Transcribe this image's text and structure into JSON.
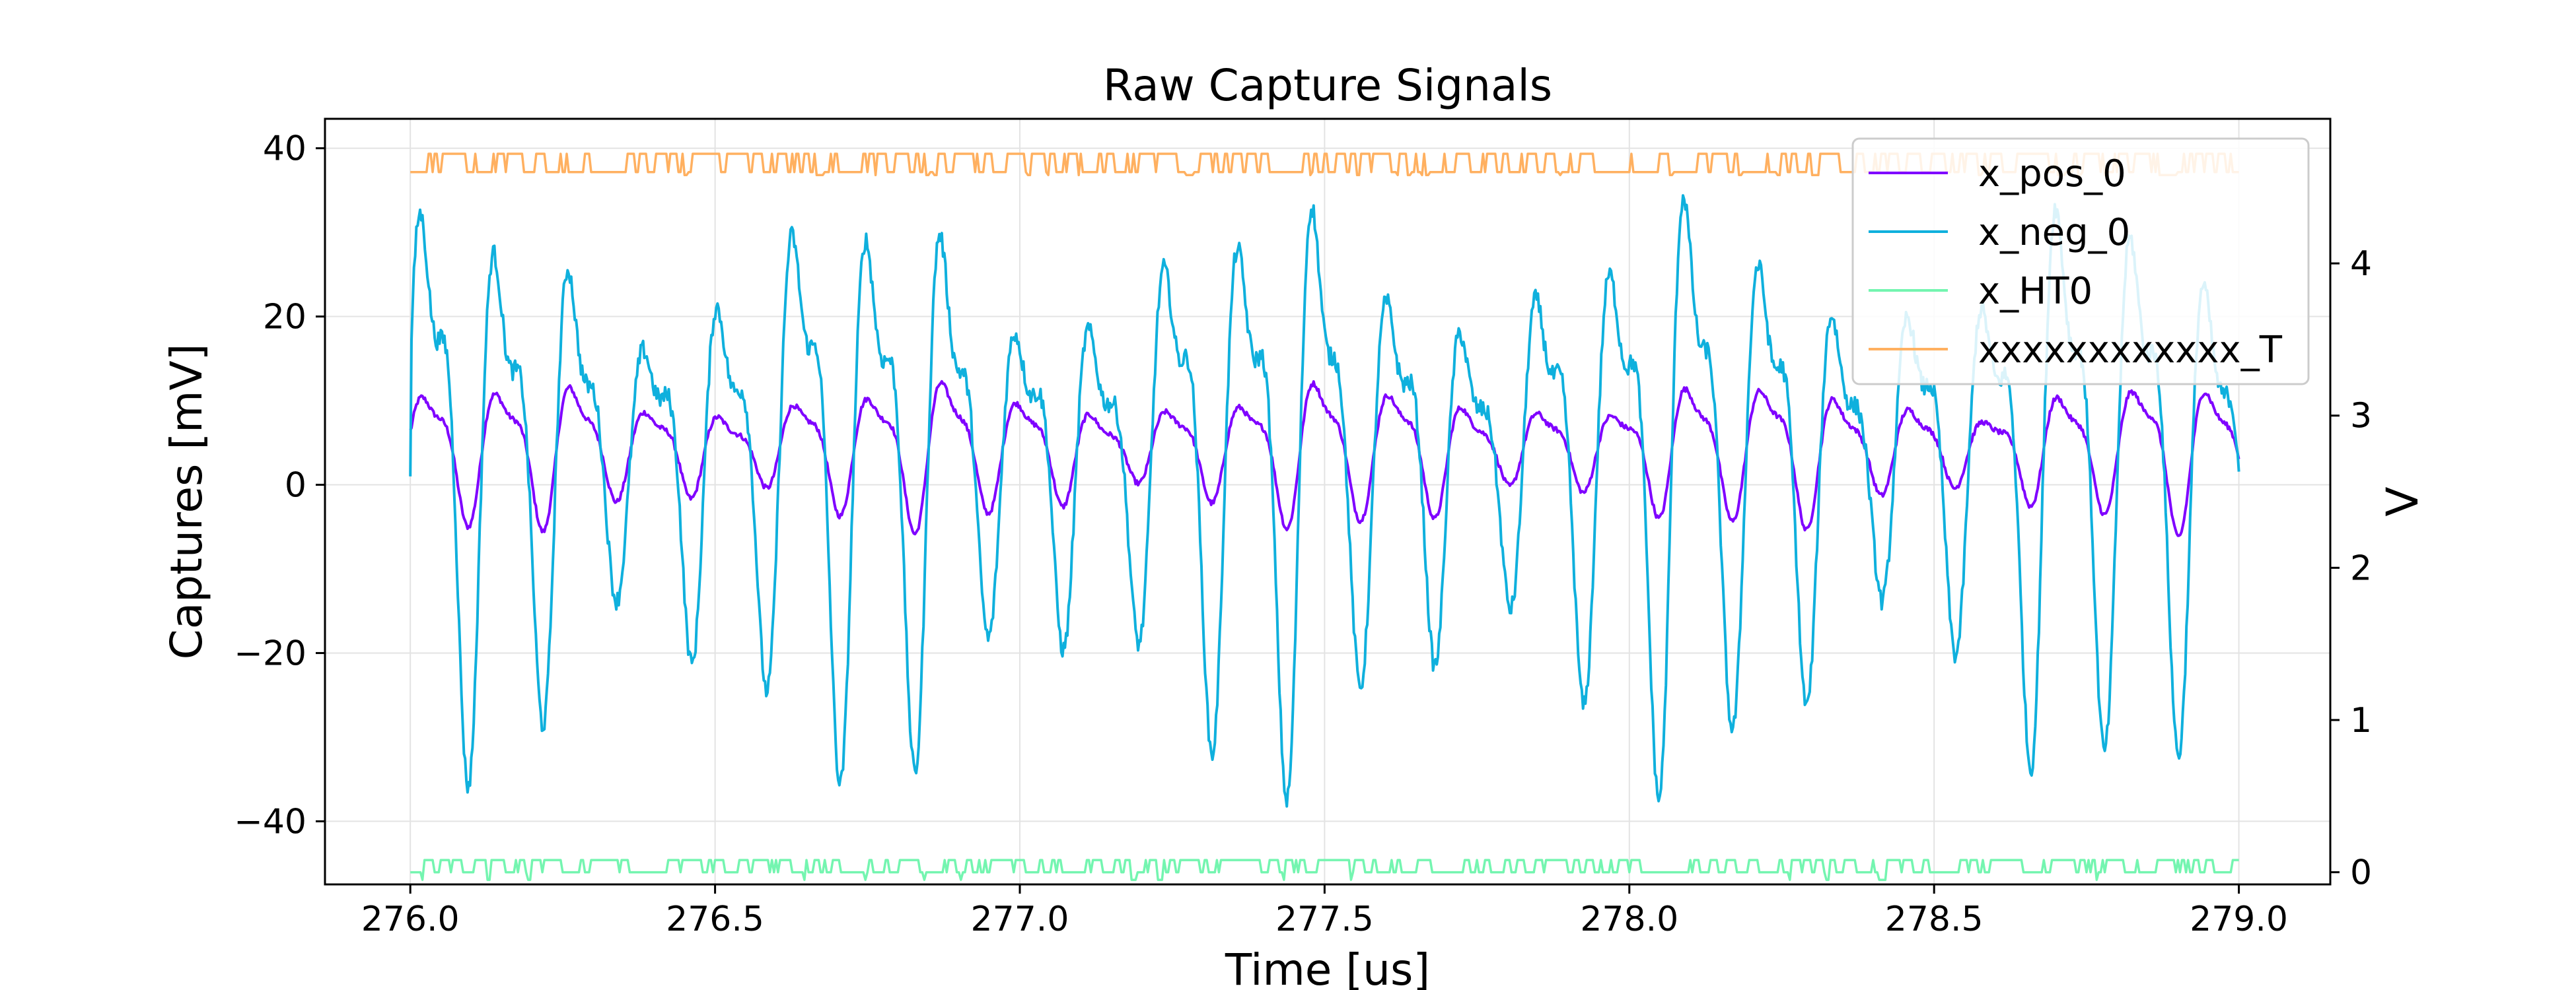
{
  "chart_data": {
    "type": "line",
    "title": "Raw Capture Signals",
    "xlabel": "Time [us]",
    "ylabel": "Captures [mV]",
    "y2label": "V",
    "xlim": [
      275.86,
      279.15
    ],
    "ylim": [
      -47.5,
      43.5
    ],
    "y2lim": [
      -0.08,
      4.95
    ],
    "xticks": [
      276.0,
      276.5,
      277.0,
      277.5,
      278.0,
      278.5,
      279.0
    ],
    "yticks": [
      -40,
      -20,
      0,
      20,
      40
    ],
    "y2ticks": [
      0,
      1,
      2,
      3,
      4
    ],
    "grid": true,
    "legend_position": "top-right",
    "x_range": [
      276.0,
      279.0
    ],
    "series": [
      {
        "name": "x_pos_0",
        "axis": "left",
        "color": "#7f00ff",
        "kind": "oscillation",
        "period_us": 0.122,
        "mean": 4.5,
        "amplitude": 7.5,
        "harmonic": 0.35,
        "start_value": 6.5
      },
      {
        "name": "x_neg_0",
        "axis": "left",
        "color": "#0fb0dd",
        "kind": "oscillation",
        "period_us": 0.122,
        "mean": 4,
        "amplitude": 28,
        "harmonic": 0.45,
        "start_value": 1
      },
      {
        "name": "x_HT0",
        "axis": "right",
        "color": "#74f5b0",
        "kind": "digital",
        "low": 0.0,
        "high": 0.08,
        "dip": -0.05
      },
      {
        "name": "xxxxxxxxxxxx_T",
        "axis": "right",
        "color": "#ffb060",
        "kind": "digital",
        "low": 4.6,
        "high": 4.72,
        "dip": 4.58
      }
    ]
  }
}
